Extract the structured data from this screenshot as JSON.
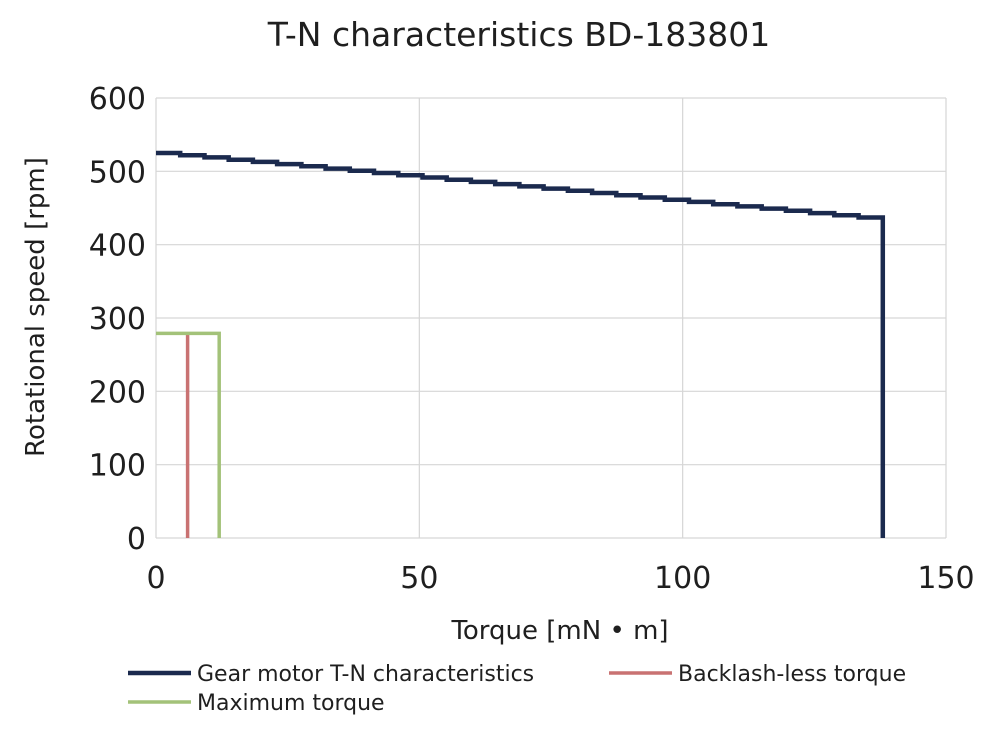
{
  "chart_data": {
    "type": "line",
    "title": "T-N characteristics BD-183801",
    "xlabel": "Torque [mN • m]",
    "ylabel": "Rotational speed [rpm]",
    "xlim": [
      0,
      150
    ],
    "ylim": [
      0,
      600
    ],
    "x_ticks": [
      "0",
      "50",
      "100",
      "150"
    ],
    "y_ticks": [
      "0",
      "100",
      "200",
      "300",
      "400",
      "500",
      "600"
    ],
    "grid": true,
    "legend_position": "bottom",
    "series": [
      {
        "name": "Gear motor T-N characteristics",
        "color": "#1b2a4e",
        "x": [
          0,
          138,
          138
        ],
        "y": [
          525,
          434,
          0
        ],
        "stepped": true
      },
      {
        "name": "Backlash-less torque",
        "color": "#c97272",
        "x": [
          6,
          6
        ],
        "y": [
          0,
          279
        ]
      },
      {
        "name": "Maximum torque",
        "color": "#a3c279",
        "x": [
          0,
          12,
          12
        ],
        "y": [
          279,
          279,
          0
        ]
      }
    ]
  }
}
